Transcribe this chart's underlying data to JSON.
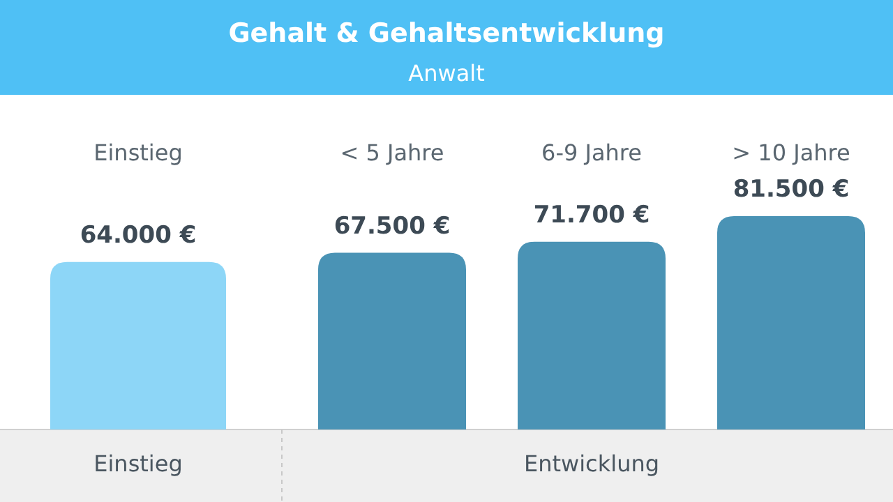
{
  "chart_data": {
    "type": "bar",
    "title": "Gehalt & Gehaltsentwicklung",
    "subtitle": "Anwalt",
    "categories": [
      "Einstieg",
      "< 5 Jahre",
      "6-9 Jahre",
      "> 10 Jahre"
    ],
    "values": [
      64000,
      67500,
      71700,
      81500
    ],
    "value_labels": [
      "64.000 €",
      "67.500 €",
      "71.700 €",
      "81.500 €"
    ],
    "colors": [
      "#8dd6f7",
      "#4a93b5",
      "#4a93b5",
      "#4a93b5"
    ],
    "annotations": [
      "Einstieg",
      "Entwicklung"
    ]
  }
}
